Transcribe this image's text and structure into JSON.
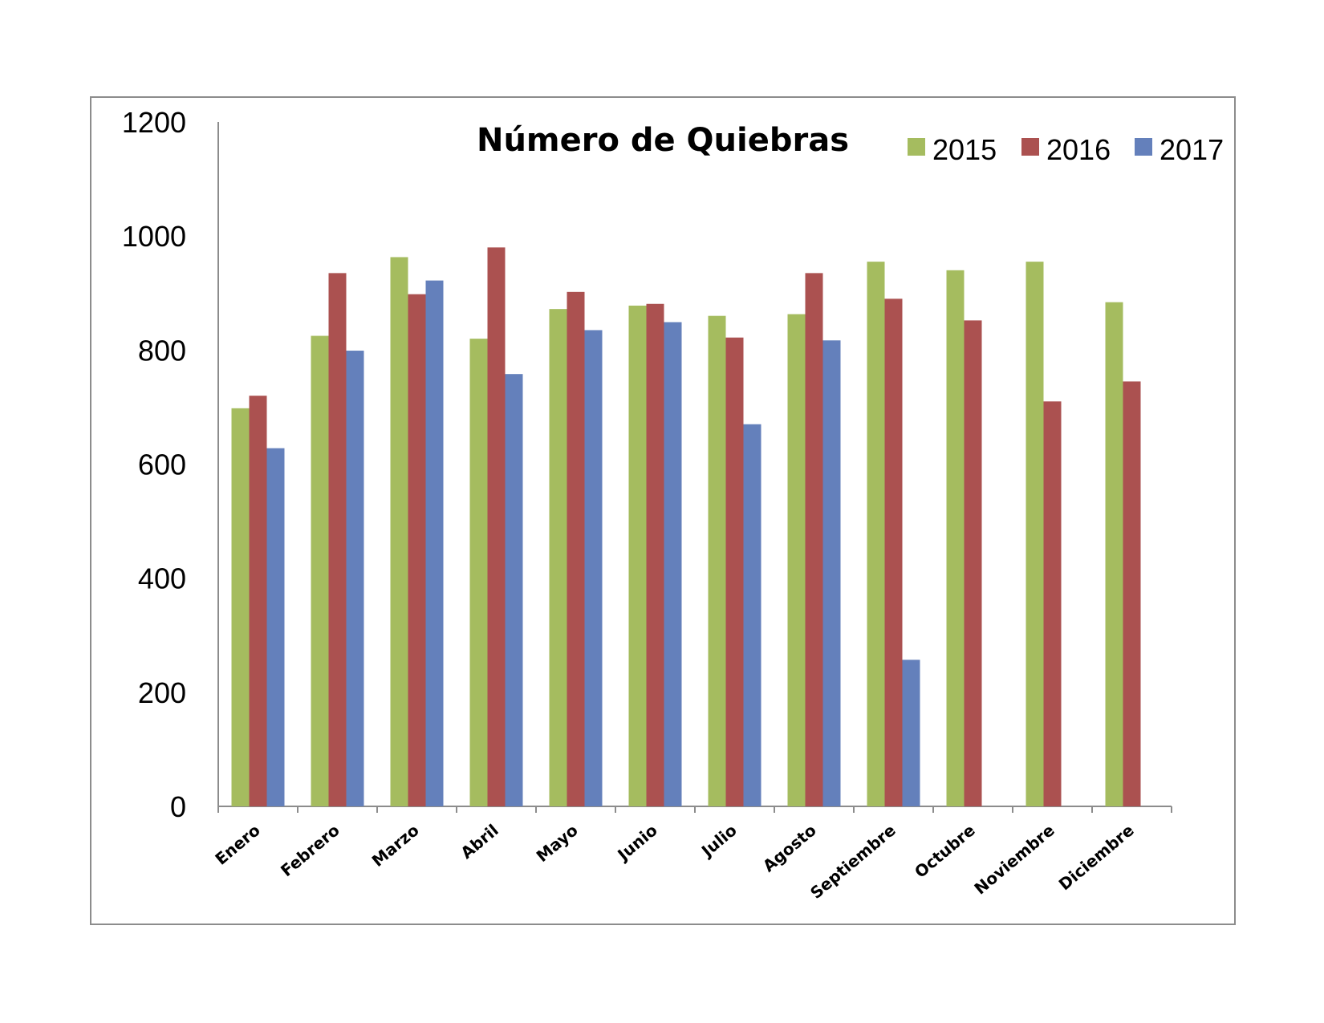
{
  "chart_data": {
    "type": "bar",
    "title": "Número de Quiebras",
    "xlabel": "",
    "ylabel": "",
    "ylim": [
      0,
      1200
    ],
    "yticks": [
      0,
      200,
      400,
      600,
      800,
      1000,
      1200
    ],
    "grid": false,
    "legend": "top-right",
    "categories": [
      "Enero",
      "Febrero",
      "Marzo",
      "Abril",
      "Mayo",
      "Junio",
      "Julio",
      "Agosto",
      "Septiembre",
      "Octubre",
      "Noviembre",
      "Diciembre"
    ],
    "series": [
      {
        "name": "2015",
        "color": "#a5bc5f",
        "values": [
          698,
          825,
          963,
          820,
          872,
          878,
          860,
          863,
          955,
          940,
          955,
          884
        ]
      },
      {
        "name": "2016",
        "color": "#ab5150",
        "values": [
          720,
          935,
          898,
          980,
          902,
          881,
          822,
          935,
          890,
          852,
          710,
          745
        ]
      },
      {
        "name": "2017",
        "color": "#6480bb",
        "values": [
          628,
          799,
          922,
          758,
          835,
          849,
          670,
          817,
          257,
          null,
          null,
          null
        ]
      }
    ]
  }
}
